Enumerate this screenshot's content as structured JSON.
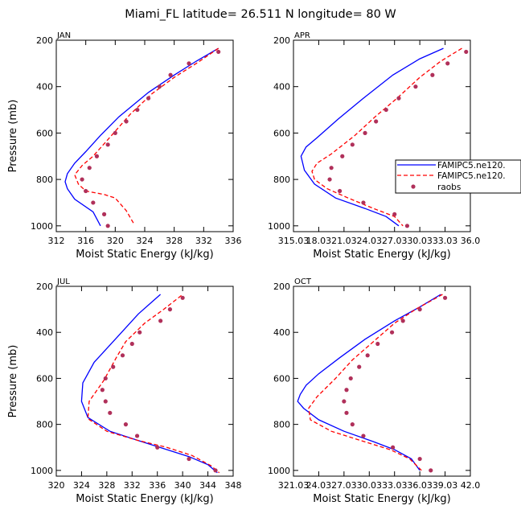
{
  "title": "Miami_FL  latitude= 26.511 N longitude= 80 W",
  "colors": {
    "model1": "#0000ff",
    "model2": "#ff0000",
    "raobs": "#b0305a"
  },
  "legend": {
    "entries": [
      {
        "label": "FAMIPC5.ne120.",
        "style": "solid",
        "color": "#0000ff"
      },
      {
        "label": "FAMIPC5.ne120.",
        "style": "dashed",
        "color": "#ff0000"
      },
      {
        "label": "raobs",
        "style": "dot",
        "color": "#b0305a"
      }
    ]
  },
  "chart_data": [
    {
      "type": "line",
      "panel_label": "JAN",
      "xlabel": "Moist Static Energy (kJ/kg)",
      "ylabel": "Pressure (mb)",
      "xlim": [
        312,
        336
      ],
      "ylim": [
        1025,
        200
      ],
      "xticks": [
        "312",
        "316",
        "320",
        "324",
        "328",
        "332",
        "336"
      ],
      "yticks": [
        "200",
        "400",
        "600",
        "800",
        "1000"
      ],
      "series": [
        {
          "style": "solid",
          "color": "#0000ff",
          "points": [
            [
              334,
              235
            ],
            [
              331,
              290
            ],
            [
              328,
              350
            ],
            [
              324.5,
              425
            ],
            [
              320.5,
              530
            ],
            [
              318,
              610
            ],
            [
              316,
              680
            ],
            [
              314.5,
              730
            ],
            [
              313.5,
              775
            ],
            [
              313.2,
              810
            ],
            [
              313.5,
              840
            ],
            [
              314.5,
              885
            ],
            [
              317,
              940
            ],
            [
              318,
              1000
            ]
          ]
        },
        {
          "style": "dashed",
          "color": "#ff0000",
          "points": [
            [
              334,
              235
            ],
            [
              331,
              300
            ],
            [
              328,
              360
            ],
            [
              325,
              430
            ],
            [
              322,
              520
            ],
            [
              319.5,
              610
            ],
            [
              317,
              700
            ],
            [
              315.5,
              740
            ],
            [
              314.5,
              780
            ],
            [
              315,
              820
            ],
            [
              316,
              850
            ],
            [
              318.5,
              865
            ],
            [
              320,
              880
            ],
            [
              321.5,
              935
            ],
            [
              322.5,
              990
            ]
          ]
        },
        {
          "style": "dot",
          "color": "#b0305a",
          "points": [
            [
              334,
              250
            ],
            [
              330,
              300
            ],
            [
              327.5,
              350
            ],
            [
              326,
              400
            ],
            [
              324.5,
              450
            ],
            [
              323,
              500
            ],
            [
              321.5,
              550
            ],
            [
              320,
              600
            ],
            [
              319,
              650
            ],
            [
              317.5,
              700
            ],
            [
              316.5,
              750
            ],
            [
              315.5,
              800
            ],
            [
              316,
              850
            ],
            [
              317,
              900
            ],
            [
              318.5,
              950
            ],
            [
              319,
              1000
            ]
          ]
        }
      ]
    },
    {
      "type": "line",
      "panel_label": "APR",
      "xlabel": "Moist Static Energy (kJ/kg)",
      "ylabel": "",
      "xlim": [
        315.0,
        336.0
      ],
      "ylim": [
        1025,
        200
      ],
      "xticks": [
        "315.03",
        "18.03",
        "21.03",
        "24.03",
        "27.03",
        "30.03",
        "33.03",
        "36.0"
      ],
      "yticks": [
        "200",
        "400",
        "600",
        "800",
        "1000"
      ],
      "series": [
        {
          "style": "solid",
          "color": "#0000ff",
          "points": [
            [
              332.8,
              235
            ],
            [
              330,
              280
            ],
            [
              326.8,
              350
            ],
            [
              323.3,
              450
            ],
            [
              320.3,
              540
            ],
            [
              317.8,
              620
            ],
            [
              316.5,
              660
            ],
            [
              315.9,
              700
            ],
            [
              316.3,
              760
            ],
            [
              317.5,
              820
            ],
            [
              320,
              880
            ],
            [
              323.5,
              925
            ],
            [
              326,
              960
            ],
            [
              327.5,
              1000
            ]
          ]
        },
        {
          "style": "dashed",
          "color": "#ff0000",
          "points": [
            [
              335,
              235
            ],
            [
              332.5,
              290
            ],
            [
              330,
              360
            ],
            [
              327.3,
              450
            ],
            [
              324.7,
              530
            ],
            [
              322.3,
              610
            ],
            [
              319.5,
              690
            ],
            [
              317.8,
              730
            ],
            [
              317.2,
              765
            ],
            [
              317.5,
              800
            ],
            [
              319,
              840
            ],
            [
              321.5,
              880
            ],
            [
              324.5,
              925
            ],
            [
              327,
              960
            ],
            [
              328,
              1000
            ]
          ]
        },
        {
          "style": "dot",
          "color": "#b0305a",
          "points": [
            [
              335.5,
              250
            ],
            [
              333.3,
              300
            ],
            [
              331.5,
              350
            ],
            [
              329.5,
              400
            ],
            [
              327.5,
              450
            ],
            [
              326,
              500
            ],
            [
              324.8,
              550
            ],
            [
              323.5,
              600
            ],
            [
              322,
              650
            ],
            [
              320.8,
              700
            ],
            [
              319.5,
              750
            ],
            [
              319.3,
              800
            ],
            [
              320.5,
              850
            ],
            [
              323.3,
              900
            ],
            [
              327,
              950
            ],
            [
              328.5,
              1000
            ]
          ]
        }
      ]
    },
    {
      "type": "line",
      "panel_label": "JUL",
      "xlabel": "Moist Static Energy (kJ/kg)",
      "ylabel": "Pressure (mb)",
      "xlim": [
        320,
        348
      ],
      "ylim": [
        1025,
        200
      ],
      "xticks": [
        "320",
        "324",
        "328",
        "332",
        "336",
        "340",
        "344",
        "348"
      ],
      "yticks": [
        "200",
        "400",
        "600",
        "800",
        "1000"
      ],
      "series": [
        {
          "style": "solid",
          "color": "#0000ff",
          "points": [
            [
              336.5,
              235
            ],
            [
              333,
              320
            ],
            [
              330,
              410
            ],
            [
              328,
              470
            ],
            [
              326,
              530
            ],
            [
              324.2,
              620
            ],
            [
              324,
              700
            ],
            [
              325,
              770
            ],
            [
              328.5,
              830
            ],
            [
              333,
              870
            ],
            [
              337,
              905
            ],
            [
              341,
              940
            ],
            [
              344,
              975
            ],
            [
              345.5,
              1010
            ]
          ]
        },
        {
          "style": "dashed",
          "color": "#ff0000",
          "points": [
            [
              339.8,
              240
            ],
            [
              337,
              300
            ],
            [
              334,
              360
            ],
            [
              331,
              440
            ],
            [
              329.5,
              510
            ],
            [
              327.5,
              610
            ],
            [
              325.2,
              700
            ],
            [
              325,
              775
            ],
            [
              328,
              830
            ],
            [
              333,
              870
            ],
            [
              337.5,
              900
            ],
            [
              341.5,
              935
            ],
            [
              344.5,
              980
            ],
            [
              345.8,
              1010
            ]
          ]
        },
        {
          "style": "dot",
          "color": "#b0305a",
          "points": [
            [
              340,
              250
            ],
            [
              338,
              300
            ],
            [
              336.5,
              350
            ],
            [
              333.2,
              400
            ],
            [
              332,
              450
            ],
            [
              330.5,
              500
            ],
            [
              329,
              550
            ],
            [
              327.8,
              600
            ],
            [
              327.3,
              650
            ],
            [
              327.8,
              700
            ],
            [
              328.5,
              750
            ],
            [
              331,
              800
            ],
            [
              332.8,
              850
            ],
            [
              336,
              900
            ],
            [
              341,
              950
            ],
            [
              345.2,
              1000
            ]
          ]
        }
      ]
    },
    {
      "type": "line",
      "panel_label": "OCT",
      "xlabel": "Moist Static Energy (kJ/kg)",
      "ylabel": "",
      "xlim": [
        321.0,
        342.0
      ],
      "ylim": [
        1025,
        200
      ],
      "xticks": [
        "321.03",
        "24.03",
        "27.03",
        "30.03",
        "33.03",
        "36.03",
        "39.03",
        "42.0"
      ],
      "yticks": [
        "200",
        "400",
        "600",
        "800",
        "1000"
      ],
      "series": [
        {
          "style": "solid",
          "color": "#0000ff",
          "points": [
            [
              338.5,
              235
            ],
            [
              336,
              290
            ],
            [
              333,
              350
            ],
            [
              329.5,
              430
            ],
            [
              326.5,
              510
            ],
            [
              324,
              580
            ],
            [
              322.5,
              630
            ],
            [
              321.8,
              670
            ],
            [
              321.5,
              700
            ],
            [
              322.2,
              730
            ],
            [
              324,
              780
            ],
            [
              327,
              830
            ],
            [
              330.5,
              875
            ],
            [
              333,
              910
            ],
            [
              335,
              950
            ],
            [
              336,
              1000
            ]
          ]
        },
        {
          "style": "dashed",
          "color": "#ff0000",
          "points": [
            [
              338.7,
              235
            ],
            [
              335.5,
              300
            ],
            [
              333,
              360
            ],
            [
              330.5,
              440
            ],
            [
              328,
              520
            ],
            [
              326,
              600
            ],
            [
              323.8,
              680
            ],
            [
              322.8,
              730
            ],
            [
              323,
              780
            ],
            [
              325.5,
              830
            ],
            [
              329,
              870
            ],
            [
              332.5,
              910
            ],
            [
              334.8,
              950
            ],
            [
              336.2,
              1000
            ]
          ]
        },
        {
          "style": "dot",
          "color": "#b0305a",
          "points": [
            [
              339,
              250
            ],
            [
              336,
              300
            ],
            [
              334,
              350
            ],
            [
              332.7,
              400
            ],
            [
              331,
              450
            ],
            [
              329.8,
              500
            ],
            [
              328.8,
              550
            ],
            [
              327.8,
              600
            ],
            [
              327.3,
              650
            ],
            [
              327,
              700
            ],
            [
              327.3,
              750
            ],
            [
              328,
              800
            ],
            [
              329.3,
              850
            ],
            [
              332.8,
              900
            ],
            [
              336,
              950
            ],
            [
              337.3,
              1000
            ]
          ]
        }
      ]
    }
  ]
}
